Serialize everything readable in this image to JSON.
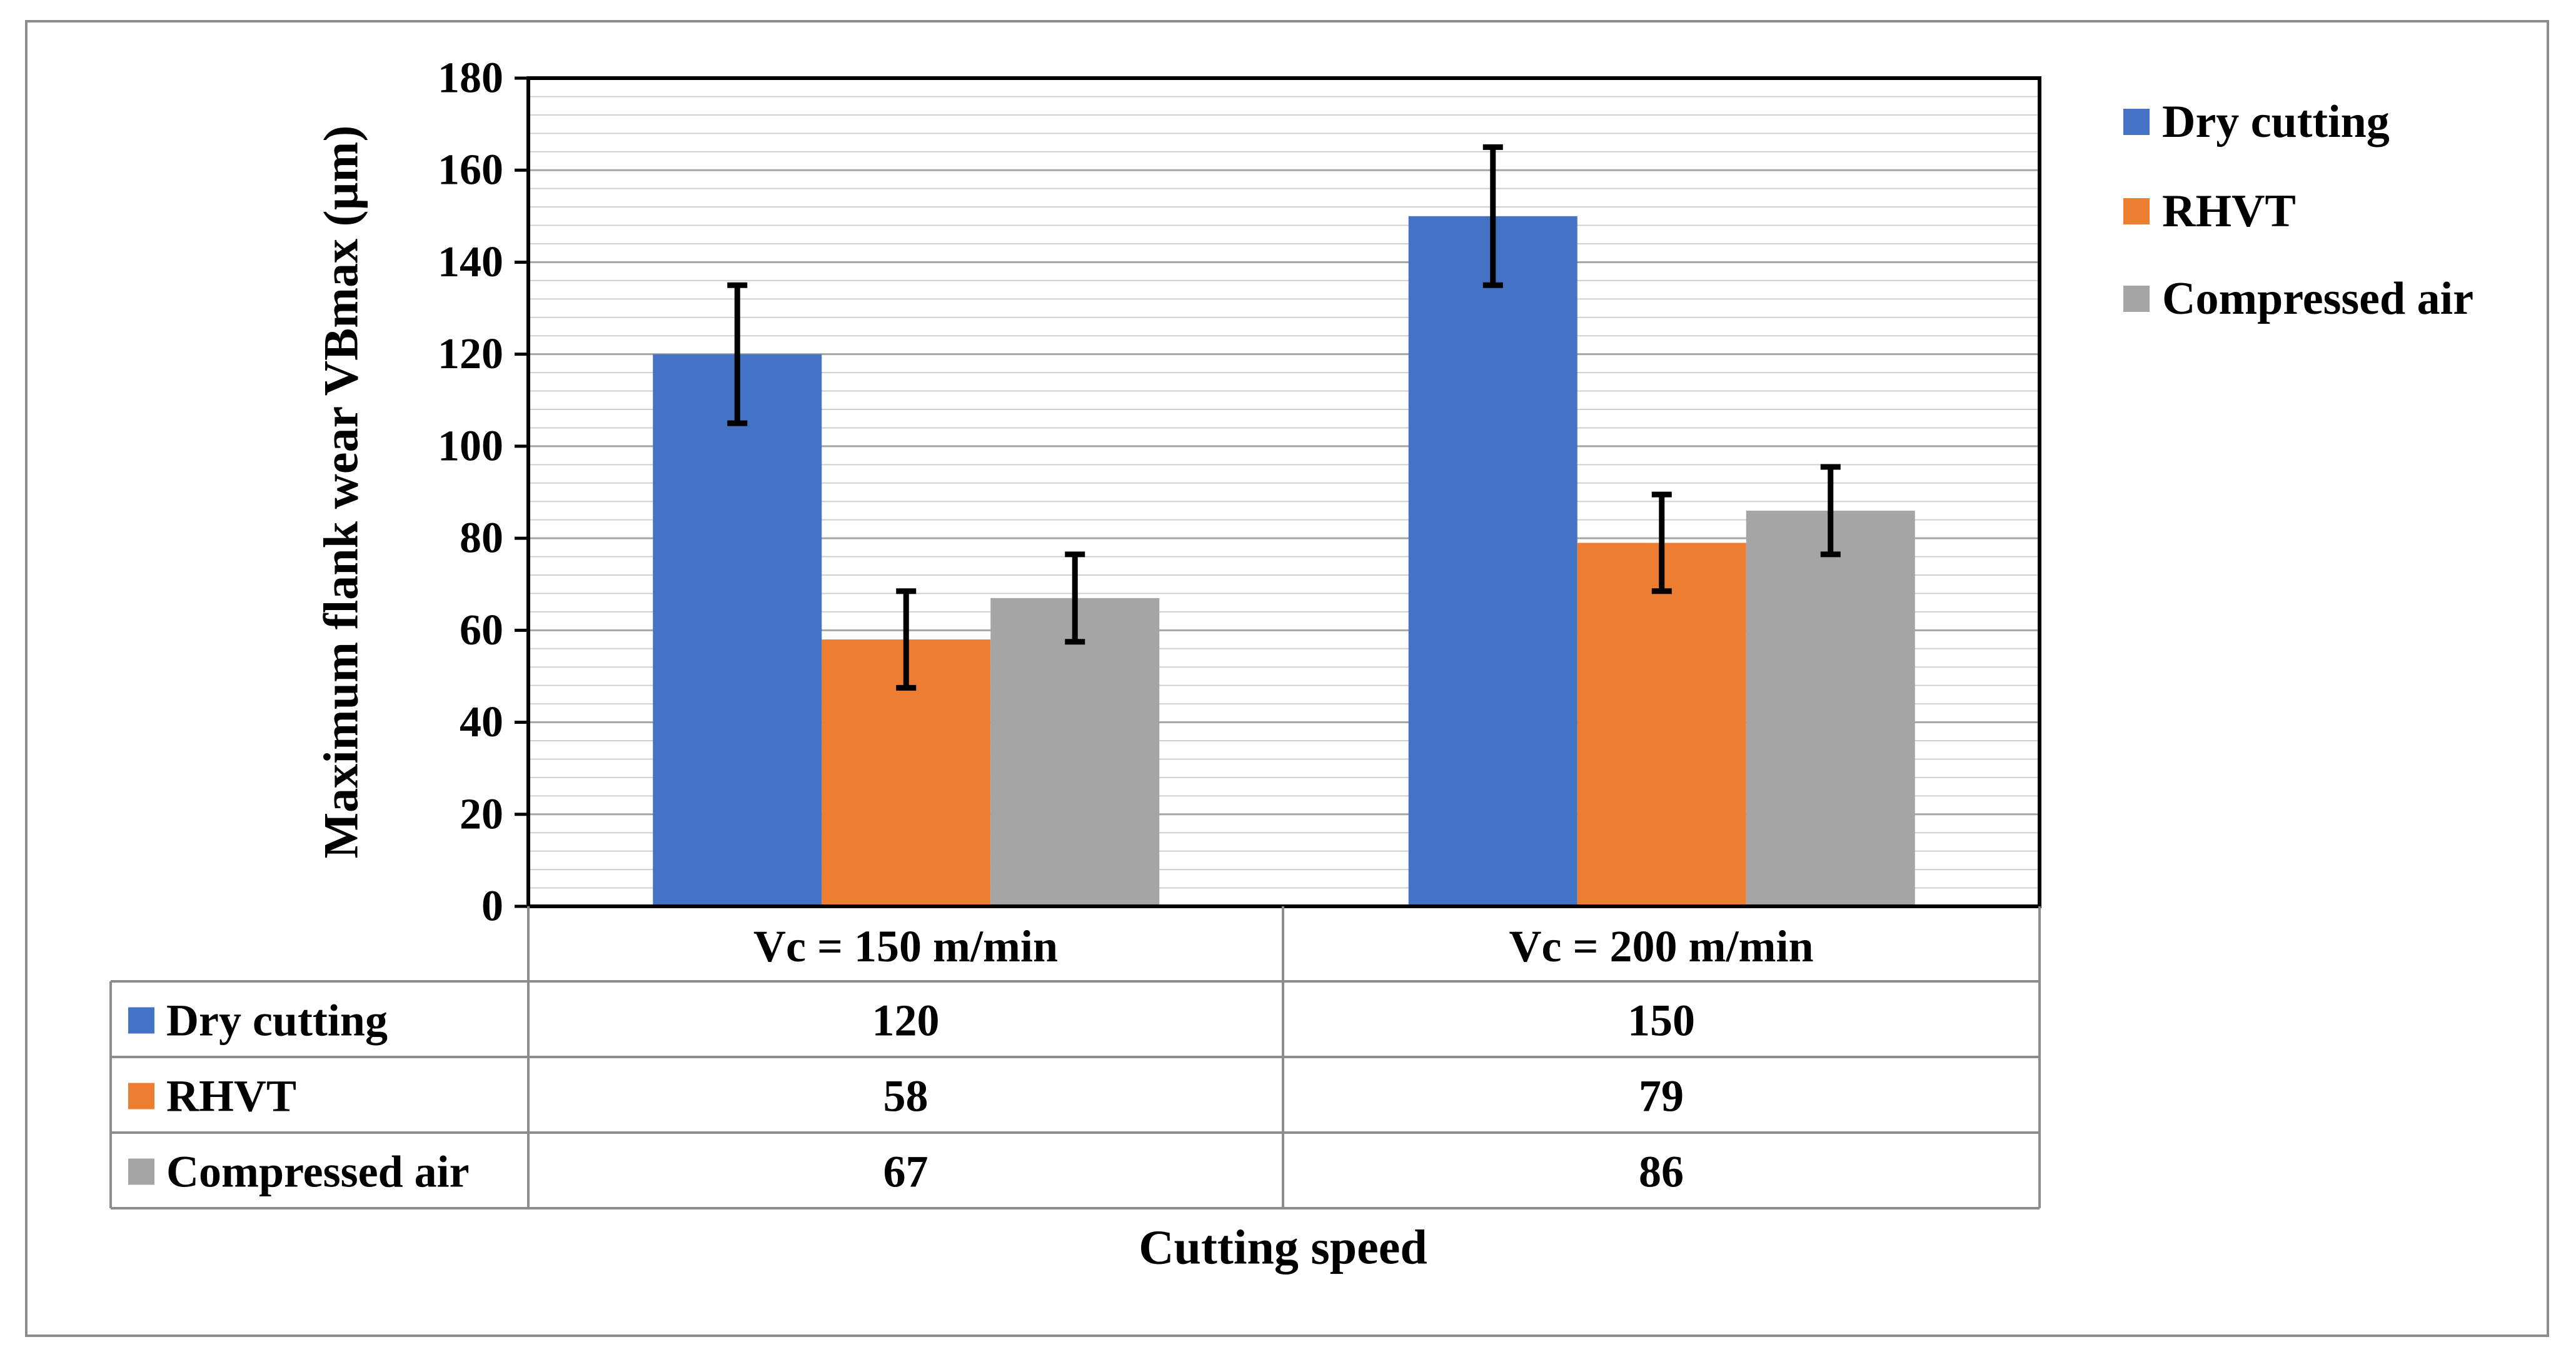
{
  "chart_data": {
    "type": "bar",
    "title": "",
    "xlabel": "Cutting speed",
    "ylabel": "Maximum flank wear VBmax (µm)",
    "ylim": [
      0,
      180
    ],
    "ytick_step": 20,
    "minor_grid_step": 4,
    "grid": true,
    "legend_position": "right",
    "categories": [
      "Vc = 150 m/min",
      "Vc = 200 m/min"
    ],
    "series": [
      {
        "name": "Dry cutting",
        "color": "#4472C4",
        "values": [
          120,
          150
        ],
        "errors": [
          15,
          15
        ]
      },
      {
        "name": "RHVT",
        "color": "#ED7D31",
        "values": [
          58,
          79
        ],
        "errors": [
          10.5,
          10.5
        ]
      },
      {
        "name": "Compressed air",
        "color": "#A5A5A5",
        "values": [
          67,
          86
        ],
        "errors": [
          9.5,
          9.5
        ]
      }
    ],
    "data_table": {
      "rows": [
        {
          "label": "Dry cutting",
          "values": [
            "120",
            "150"
          ]
        },
        {
          "label": "RHVT",
          "values": [
            "58",
            "79"
          ]
        },
        {
          "label": "Compressed air",
          "values": [
            "67",
            "86"
          ]
        }
      ]
    }
  }
}
